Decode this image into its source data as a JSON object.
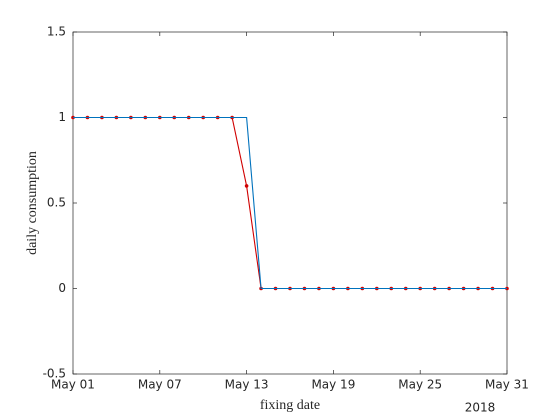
{
  "chart_data": {
    "type": "line",
    "xlabel": "fixing date",
    "ylabel": "daily consumption",
    "x_secondary_label": "2018",
    "x": [
      "2018-05-01",
      "2018-05-02",
      "2018-05-03",
      "2018-05-04",
      "2018-05-05",
      "2018-05-06",
      "2018-05-07",
      "2018-05-08",
      "2018-05-09",
      "2018-05-10",
      "2018-05-11",
      "2018-05-12",
      "2018-05-13",
      "2018-05-14",
      "2018-05-15",
      "2018-05-16",
      "2018-05-17",
      "2018-05-18",
      "2018-05-19",
      "2018-05-20",
      "2018-05-21",
      "2018-05-22",
      "2018-05-23",
      "2018-05-24",
      "2018-05-25",
      "2018-05-26",
      "2018-05-27",
      "2018-05-28",
      "2018-05-29",
      "2018-05-30",
      "2018-05-31"
    ],
    "series": [
      {
        "color": "#d00000",
        "marker": true,
        "values": [
          1,
          1,
          1,
          1,
          1,
          1,
          1,
          1,
          1,
          1,
          1,
          1,
          0.6,
          0,
          0,
          0,
          0,
          0,
          0,
          0,
          0,
          0,
          0,
          0,
          0,
          0,
          0,
          0,
          0,
          0,
          0
        ]
      },
      {
        "color": "#0072bd",
        "marker": false,
        "values": [
          1,
          1,
          1,
          1,
          1,
          1,
          1,
          1,
          1,
          1,
          1,
          1,
          1,
          0,
          0,
          0,
          0,
          0,
          0,
          0,
          0,
          0,
          0,
          0,
          0,
          0,
          0,
          0,
          0,
          0,
          0
        ]
      }
    ],
    "xlim": [
      "2018-05-01",
      "2018-05-31"
    ],
    "xticks": [
      {
        "value": "2018-05-01",
        "label": "May 01"
      },
      {
        "value": "2018-05-07",
        "label": "May 07"
      },
      {
        "value": "2018-05-13",
        "label": "May 13"
      },
      {
        "value": "2018-05-19",
        "label": "May 19"
      },
      {
        "value": "2018-05-25",
        "label": "May 25"
      },
      {
        "value": "2018-05-31",
        "label": "May 31"
      }
    ],
    "ylim": [
      -0.5,
      1.5
    ],
    "yticks": [
      -0.5,
      0,
      0.5,
      1,
      1.5
    ],
    "grid": false
  }
}
